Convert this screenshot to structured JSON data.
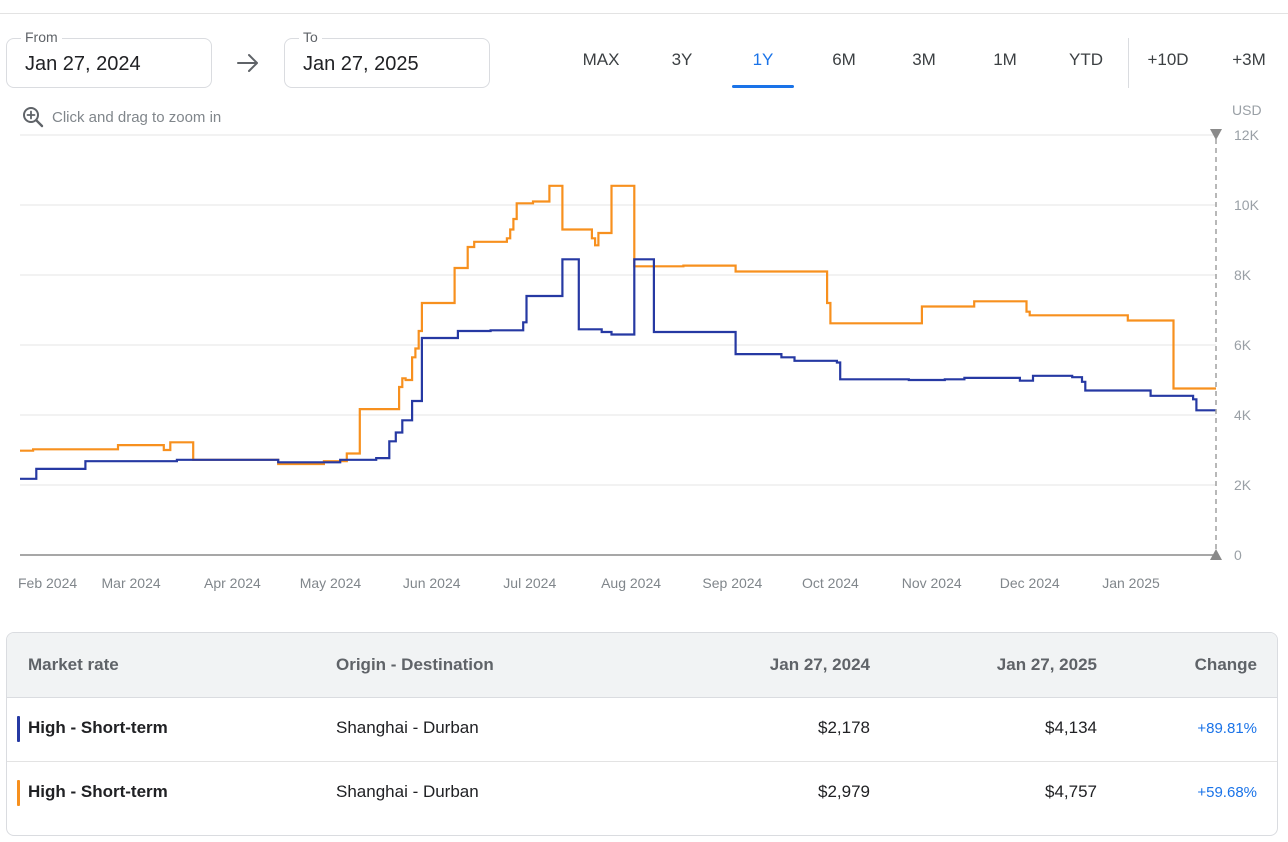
{
  "date_range": {
    "from_label": "From",
    "from_value": "Jan 27, 2024",
    "to_label": "To",
    "to_value": "Jan 27, 2025"
  },
  "range_buttons": [
    "MAX",
    "3Y",
    "1Y",
    "6M",
    "3M",
    "1M",
    "YTD",
    "+10D",
    "+3M"
  ],
  "active_range": "1Y",
  "zoom_hint": "Click and drag to zoom in",
  "colors": {
    "accent": "#1a73e8",
    "series_blue": "#2639a3",
    "series_orange": "#f7901e"
  },
  "chart_data": {
    "type": "line",
    "step": true,
    "unit": "USD",
    "ylim": [
      0,
      12000
    ],
    "y_ticks": [
      0,
      2000,
      4000,
      6000,
      8000,
      10000,
      12000
    ],
    "y_tick_labels": [
      "0",
      "2K",
      "4K",
      "6K",
      "8K",
      "10K",
      "12K"
    ],
    "xlim": [
      "2024-01-27",
      "2025-01-27"
    ],
    "x_ticks": [
      "2024-02-01",
      "2024-03-01",
      "2024-04-01",
      "2024-05-01",
      "2024-06-01",
      "2024-07-01",
      "2024-08-01",
      "2024-09-01",
      "2024-10-01",
      "2024-11-01",
      "2024-12-01",
      "2025-01-01"
    ],
    "x_tick_labels": [
      "Feb 2024",
      "Mar 2024",
      "Apr 2024",
      "May 2024",
      "Jun 2024",
      "Jul 2024",
      "Aug 2024",
      "Sep 2024",
      "Oct 2024",
      "Nov 2024",
      "Dec 2024",
      "Jan 2025"
    ],
    "grid": true,
    "series": [
      {
        "color": "#2639a3",
        "points": [
          [
            "2024-01-27",
            2178
          ],
          [
            "2024-02-01",
            2460
          ],
          [
            "2024-02-16",
            2680
          ],
          [
            "2024-03-15",
            2720
          ],
          [
            "2024-04-15",
            2650
          ],
          [
            "2024-05-04",
            2720
          ],
          [
            "2024-05-15",
            2770
          ],
          [
            "2024-05-19",
            3250
          ],
          [
            "2024-05-21",
            3500
          ],
          [
            "2024-05-23",
            3850
          ],
          [
            "2024-05-26",
            4400
          ],
          [
            "2024-05-29",
            6200
          ],
          [
            "2024-06-09",
            6400
          ],
          [
            "2024-06-19",
            6420
          ],
          [
            "2024-06-29",
            6650
          ],
          [
            "2024-06-30",
            7400
          ],
          [
            "2024-07-11",
            8450
          ],
          [
            "2024-07-16",
            6450
          ],
          [
            "2024-07-23",
            6370
          ],
          [
            "2024-07-26",
            6300
          ],
          [
            "2024-08-02",
            8450
          ],
          [
            "2024-08-08",
            6370
          ],
          [
            "2024-08-22",
            6370
          ],
          [
            "2024-09-02",
            5740
          ],
          [
            "2024-09-16",
            5650
          ],
          [
            "2024-09-20",
            5550
          ],
          [
            "2024-10-03",
            5500
          ],
          [
            "2024-10-04",
            5020
          ],
          [
            "2024-10-25",
            5000
          ],
          [
            "2024-11-05",
            5020
          ],
          [
            "2024-11-11",
            5060
          ],
          [
            "2024-11-28",
            4980
          ],
          [
            "2024-12-02",
            5120
          ],
          [
            "2024-12-14",
            5080
          ],
          [
            "2024-12-17",
            4950
          ],
          [
            "2024-12-18",
            4700
          ],
          [
            "2025-01-01",
            4700
          ],
          [
            "2025-01-07",
            4550
          ],
          [
            "2025-01-20",
            4450
          ],
          [
            "2025-01-21",
            4134
          ],
          [
            "2025-01-27",
            4134
          ]
        ]
      },
      {
        "color": "#f7901e",
        "points": [
          [
            "2024-01-27",
            2979
          ],
          [
            "2024-01-31",
            3020
          ],
          [
            "2024-02-26",
            3140
          ],
          [
            "2024-03-11",
            3000
          ],
          [
            "2024-03-13",
            3220
          ],
          [
            "2024-03-20",
            2720
          ],
          [
            "2024-04-15",
            2600
          ],
          [
            "2024-04-29",
            2680
          ],
          [
            "2024-05-06",
            2900
          ],
          [
            "2024-05-10",
            4170
          ],
          [
            "2024-05-22",
            4800
          ],
          [
            "2024-05-23",
            5050
          ],
          [
            "2024-05-24",
            5000
          ],
          [
            "2024-05-26",
            5650
          ],
          [
            "2024-05-27",
            5900
          ],
          [
            "2024-05-28",
            6400
          ],
          [
            "2024-05-29",
            7200
          ],
          [
            "2024-06-08",
            8200
          ],
          [
            "2024-06-12",
            8800
          ],
          [
            "2024-06-14",
            8950
          ],
          [
            "2024-06-24",
            9050
          ],
          [
            "2024-06-25",
            9300
          ],
          [
            "2024-06-26",
            9600
          ],
          [
            "2024-06-27",
            10050
          ],
          [
            "2024-07-02",
            10100
          ],
          [
            "2024-07-07",
            10550
          ],
          [
            "2024-07-11",
            9300
          ],
          [
            "2024-07-20",
            9050
          ],
          [
            "2024-07-21",
            8850
          ],
          [
            "2024-07-22",
            9200
          ],
          [
            "2024-07-26",
            10550
          ],
          [
            "2024-08-02",
            8250
          ],
          [
            "2024-08-17",
            8270
          ],
          [
            "2024-09-02",
            8100
          ],
          [
            "2024-09-30",
            7200
          ],
          [
            "2024-10-01",
            6620
          ],
          [
            "2024-10-29",
            7100
          ],
          [
            "2024-11-14",
            7250
          ],
          [
            "2024-11-30",
            6950
          ],
          [
            "2024-12-01",
            6850
          ],
          [
            "2024-12-31",
            6700
          ],
          [
            "2025-01-14",
            4757
          ],
          [
            "2025-01-27",
            4757
          ]
        ]
      }
    ]
  },
  "table": {
    "headers": [
      "Market rate",
      "Origin - Destination",
      "Jan 27, 2024",
      "Jan 27, 2025",
      "Change"
    ],
    "rows": [
      {
        "color": "#2639a3",
        "market_rate": "High - Short-term",
        "route": "Shanghai - Durban",
        "start": "$2,178",
        "end": "$4,134",
        "change": "+89.81%"
      },
      {
        "color": "#f7901e",
        "market_rate": "High - Short-term",
        "route": "Shanghai - Durban",
        "start": "$2,979",
        "end": "$4,757",
        "change": "+59.68%"
      }
    ]
  }
}
